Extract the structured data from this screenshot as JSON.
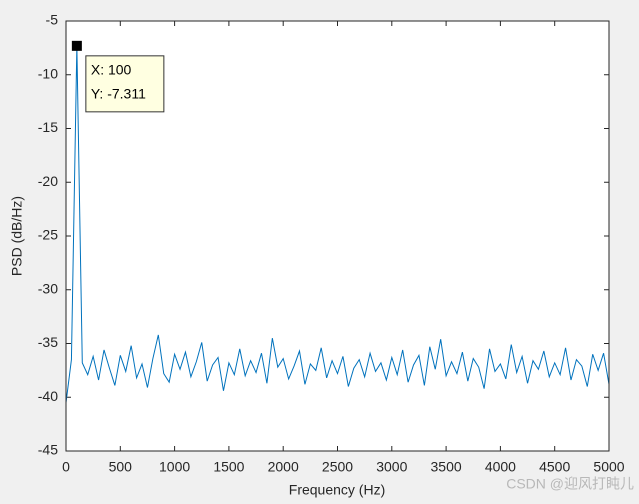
{
  "chart_data": {
    "type": "line",
    "xlabel": "Frequency (Hz)",
    "ylabel": "PSD (dB/Hz)",
    "x": [
      0,
      50,
      100,
      150,
      200,
      250,
      300,
      350,
      400,
      450,
      500,
      550,
      600,
      650,
      700,
      750,
      800,
      850,
      900,
      950,
      1000,
      1050,
      1100,
      1150,
      1200,
      1250,
      1300,
      1350,
      1400,
      1450,
      1500,
      1550,
      1600,
      1650,
      1700,
      1750,
      1800,
      1850,
      1900,
      1950,
      2000,
      2050,
      2100,
      2150,
      2200,
      2250,
      2300,
      2350,
      2400,
      2450,
      2500,
      2550,
      2600,
      2650,
      2700,
      2750,
      2800,
      2850,
      2900,
      2950,
      3000,
      3050,
      3100,
      3150,
      3200,
      3250,
      3300,
      3350,
      3400,
      3450,
      3500,
      3550,
      3600,
      3650,
      3700,
      3750,
      3800,
      3850,
      3900,
      3950,
      4000,
      4050,
      4100,
      4150,
      4200,
      4250,
      4300,
      4350,
      4400,
      4450,
      4500,
      4550,
      4600,
      4650,
      4700,
      4750,
      4800,
      4850,
      4900,
      4950,
      5000
    ],
    "series": [
      {
        "color": "#0072bd",
        "values": [
          -40.5,
          -36.5,
          -7.311,
          -36.8,
          -37.9,
          -36.2,
          -38.4,
          -35.6,
          -37.3,
          -38.9,
          -36.1,
          -37.6,
          -35.2,
          -38.2,
          -36.9,
          -39.1,
          -36.4,
          -34.2,
          -37.8,
          -38.6,
          -36.0,
          -37.4,
          -35.8,
          -38.1,
          -36.7,
          -34.9,
          -38.5,
          -37.0,
          -36.3,
          -39.4,
          -36.8,
          -37.9,
          -35.5,
          -38.0,
          -36.6,
          -37.7,
          -35.9,
          -38.7,
          -34.5,
          -37.2,
          -36.4,
          -38.3,
          -37.1,
          -35.7,
          -38.8,
          -36.9,
          -37.5,
          -35.4,
          -38.2,
          -36.6,
          -37.8,
          -36.2,
          -39.0,
          -37.3,
          -36.5,
          -38.1,
          -35.9,
          -37.6,
          -36.8,
          -38.4,
          -36.3,
          -37.9,
          -35.6,
          -38.6,
          -37.0,
          -36.1,
          -38.9,
          -35.3,
          -37.4,
          -34.6,
          -38.0,
          -36.7,
          -37.8,
          -35.8,
          -38.5,
          -36.4,
          -37.2,
          -39.2,
          -35.5,
          -37.6,
          -36.9,
          -38.3,
          -35.1,
          -37.7,
          -36.2,
          -38.7,
          -36.6,
          -37.4,
          -35.7,
          -38.1,
          -36.8,
          -37.9,
          -35.4,
          -38.4,
          -36.5,
          -37.1,
          -39.0,
          -36.0,
          -37.5,
          -35.9,
          -38.8
        ]
      }
    ],
    "xlim": [
      0,
      5000
    ],
    "xticks": [
      0,
      500,
      1000,
      1500,
      2000,
      2500,
      3000,
      3500,
      4000,
      4500,
      5000
    ],
    "ylim": [
      -45,
      -5
    ],
    "yticks": [
      -45,
      -40,
      -35,
      -30,
      -25,
      -20,
      -15,
      -10,
      -5
    ],
    "datatip": {
      "index": 2,
      "lines": [
        "X: 100",
        "Y: -7.311"
      ]
    },
    "watermark": "CSDN @迎风打盹儿"
  }
}
